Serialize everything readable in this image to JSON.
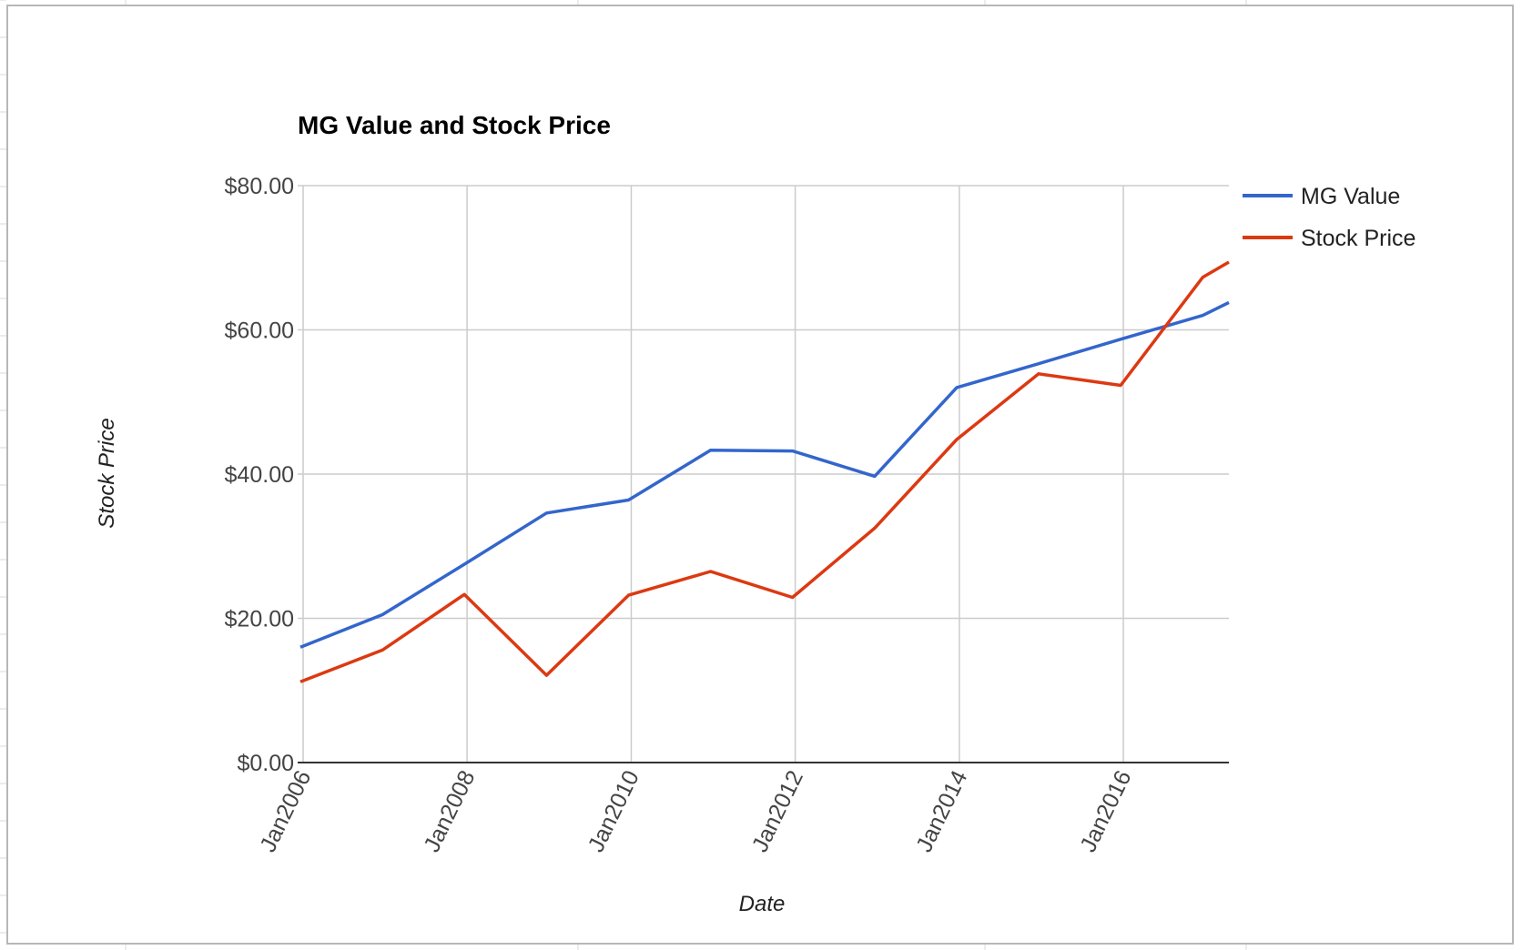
{
  "chart_data": {
    "type": "line",
    "title": "MG Value and Stock Price",
    "xlabel": "Date",
    "ylabel": "Stock Price",
    "ylim": [
      0,
      80
    ],
    "xlim": [
      "2006-01-01",
      "2017-04-15"
    ],
    "y_ticks": [
      0,
      20,
      40,
      60,
      80
    ],
    "y_tick_labels": [
      "$0.00",
      "$20.00",
      "$40.00",
      "$60.00",
      "$80.00"
    ],
    "x_ticks": [
      "2006-01-01",
      "2008-01-01",
      "2010-01-01",
      "2012-01-01",
      "2014-01-01",
      "2016-01-01"
    ],
    "x_tick_labels": [
      "Jan2006",
      "Jan2008",
      "Jan2010",
      "Jan2012",
      "Jan2014",
      "Jan2016"
    ],
    "grid": true,
    "legend_position": "right",
    "series": [
      {
        "name": "MG Value",
        "color": "#3366cc",
        "points": [
          [
            "2005-12-20",
            16.0
          ],
          [
            "2006-12-20",
            20.5
          ],
          [
            "2007-12-20",
            27.5
          ],
          [
            "2008-12-20",
            34.6
          ],
          [
            "2009-12-20",
            36.4
          ],
          [
            "2010-12-20",
            43.3
          ],
          [
            "2011-12-20",
            43.2
          ],
          [
            "2012-12-20",
            39.7
          ],
          [
            "2013-12-20",
            52.0
          ],
          [
            "2014-12-20",
            55.3
          ],
          [
            "2015-12-20",
            58.7
          ],
          [
            "2016-12-20",
            62.0
          ],
          [
            "2017-04-15",
            63.8
          ]
        ]
      },
      {
        "name": "Stock Price",
        "color": "#dc3912",
        "points": [
          [
            "2005-12-20",
            11.2
          ],
          [
            "2006-12-20",
            15.6
          ],
          [
            "2007-12-20",
            23.3
          ],
          [
            "2008-12-20",
            12.1
          ],
          [
            "2009-12-20",
            23.2
          ],
          [
            "2010-12-20",
            26.5
          ],
          [
            "2011-12-20",
            22.9
          ],
          [
            "2012-12-20",
            32.5
          ],
          [
            "2013-12-20",
            44.8
          ],
          [
            "2014-12-20",
            53.9
          ],
          [
            "2015-12-20",
            52.3
          ],
          [
            "2016-12-20",
            67.3
          ],
          [
            "2017-04-15",
            69.4
          ]
        ]
      }
    ]
  }
}
